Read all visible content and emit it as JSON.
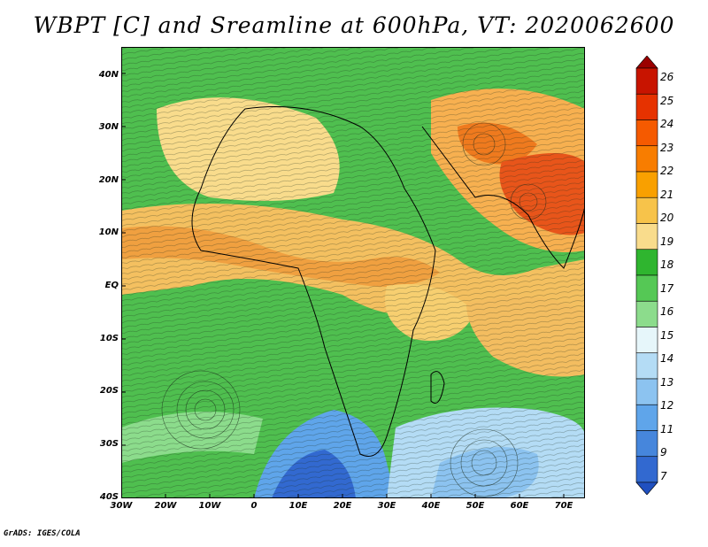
{
  "title": "WBPT [C] and Sreamline at 600hPa, VT: 2020062600",
  "credit": "GrADS: IGES/COLA",
  "y_ticks": [
    "40N",
    "30N",
    "20N",
    "10N",
    "EQ",
    "10S",
    "20S",
    "30S",
    "40S"
  ],
  "x_ticks": [
    "30W",
    "20W",
    "10W",
    "0",
    "10E",
    "20E",
    "30E",
    "40E",
    "50E",
    "60E",
    "70E"
  ],
  "colorbar": {
    "labels": [
      "26",
      "25",
      "24",
      "23",
      "22",
      "21",
      "20",
      "19",
      "18",
      "17",
      "16",
      "15",
      "14",
      "13",
      "12",
      "11",
      "9",
      "7"
    ],
    "colors": [
      "#9b0000",
      "#c81400",
      "#e63200",
      "#f55a00",
      "#f87d00",
      "#f9a000",
      "#f7c34a",
      "#f9dc8c",
      "#2fb52f",
      "#55c855",
      "#8cdc8c",
      "#e6f6fa",
      "#b4dcf5",
      "#8cc3f0",
      "#5fa5ea",
      "#4686dc",
      "#3269d0",
      "#2050c0"
    ]
  },
  "map": {
    "lon_range": [
      -30,
      75
    ],
    "lat_range": [
      -40,
      45
    ],
    "field": "Wet-bulb potential temperature (C) at 600hPa with streamlines"
  }
}
